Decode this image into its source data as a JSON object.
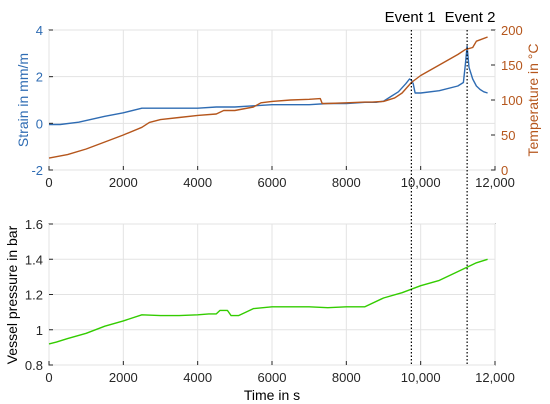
{
  "chart_data": [
    {
      "type": "line",
      "events": [
        {
          "label": "Event 1",
          "x": 9750
        },
        {
          "label": "Event 2",
          "x": 11250
        }
      ],
      "xlim": [
        0,
        12000
      ],
      "x_ticks": [
        "0",
        "2000",
        "4000",
        "6000",
        "8000",
        "10,000",
        "12,000"
      ],
      "y_left": {
        "label": "Strain in mm/m",
        "lim": [
          -2,
          4
        ],
        "ticks": [
          "-2",
          "0",
          "2",
          "4"
        ],
        "color": "#2f6cb3"
      },
      "y_right": {
        "label": "Temperature in °C",
        "lim": [
          0,
          200
        ],
        "ticks": [
          "0",
          "50",
          "100",
          "150",
          "200"
        ],
        "color": "#b5561c"
      },
      "grid": true,
      "series": [
        {
          "name": "Strain in mm/m",
          "axis": "left",
          "color": "#2f6cb3",
          "x": [
            0,
            300,
            800,
            1500,
            2000,
            2500,
            3000,
            3500,
            4000,
            4500,
            5000,
            5500,
            6000,
            6500,
            7000,
            7500,
            8000,
            8500,
            8800,
            9000,
            9200,
            9400,
            9600,
            9700,
            9750,
            9800,
            9850,
            10000,
            10500,
            11000,
            11150,
            11200,
            11250,
            11300,
            11400,
            11500,
            11600,
            11700,
            11800
          ],
          "y": [
            -0.05,
            -0.05,
            0.05,
            0.3,
            0.45,
            0.65,
            0.65,
            0.65,
            0.65,
            0.7,
            0.7,
            0.75,
            0.8,
            0.8,
            0.8,
            0.85,
            0.85,
            0.9,
            0.9,
            0.95,
            1.15,
            1.35,
            1.7,
            1.9,
            1.85,
            1.7,
            1.3,
            1.3,
            1.4,
            1.6,
            1.75,
            2.5,
            3.3,
            2.4,
            1.9,
            1.6,
            1.45,
            1.35,
            1.3
          ]
        },
        {
          "name": "Temperature in °C",
          "axis": "right",
          "color": "#b5561c",
          "x": [
            0,
            500,
            1000,
            1500,
            2000,
            2500,
            2700,
            3000,
            3500,
            4000,
            4500,
            4700,
            5000,
            5500,
            5700,
            6000,
            6500,
            7000,
            7300,
            7350,
            7500,
            8000,
            8500,
            8700,
            9000,
            9300,
            9500,
            9750,
            10000,
            10500,
            11000,
            11200,
            11400,
            11500,
            11600,
            11800
          ],
          "y": [
            17,
            22,
            30,
            40,
            50,
            61,
            68,
            72,
            75,
            78,
            80,
            85,
            85,
            90,
            96,
            98,
            100,
            101,
            102,
            95,
            95,
            96,
            97,
            97,
            98,
            103,
            110,
            125,
            135,
            150,
            165,
            172,
            175,
            184,
            186,
            190
          ]
        }
      ]
    },
    {
      "type": "line",
      "xlabel": "Time in s",
      "ylabel": "Vessel pressure in bar",
      "xlim": [
        0,
        12000
      ],
      "ylim": [
        0.8,
        1.6
      ],
      "x_ticks": [
        "0",
        "2000",
        "4000",
        "6000",
        "8000",
        "10,000",
        "12,000"
      ],
      "y_ticks": [
        "0.8",
        "1",
        "1.2",
        "1.4",
        "1.6"
      ],
      "grid": true,
      "series": [
        {
          "name": "Vessel pressure in bar",
          "color": "#33cc00",
          "x": [
            0,
            200,
            500,
            1000,
            1500,
            2000,
            2500,
            3000,
            3500,
            4000,
            4300,
            4500,
            4600,
            4800,
            4900,
            5100,
            5300,
            5500,
            6000,
            6500,
            7000,
            7500,
            8000,
            8500,
            9000,
            9500,
            10000,
            10500,
            11000,
            11500,
            11800
          ],
          "y": [
            0.92,
            0.93,
            0.95,
            0.98,
            1.02,
            1.05,
            1.085,
            1.08,
            1.08,
            1.085,
            1.09,
            1.09,
            1.11,
            1.11,
            1.08,
            1.08,
            1.1,
            1.12,
            1.13,
            1.13,
            1.13,
            1.125,
            1.13,
            1.13,
            1.18,
            1.21,
            1.25,
            1.28,
            1.33,
            1.38,
            1.4
          ]
        }
      ]
    }
  ]
}
